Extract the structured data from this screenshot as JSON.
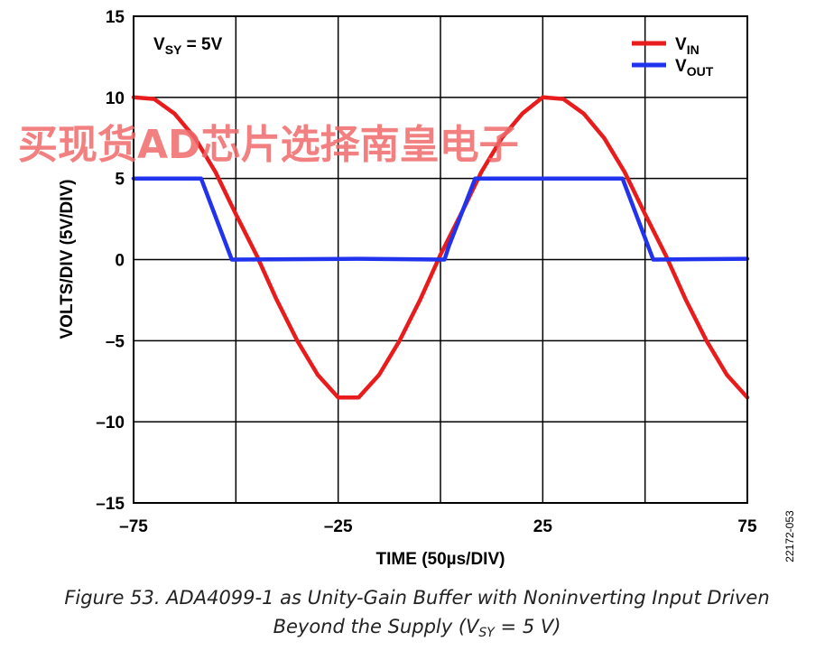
{
  "chart_data": {
    "type": "line",
    "xlabel": "TIME (50µs/DIV)",
    "ylabel": "VOLTS/DIV (5V/DIV)",
    "xlim": [
      -75,
      75
    ],
    "ylim": [
      -15,
      15
    ],
    "xticks": [
      "–75",
      "–25",
      "25",
      "75"
    ],
    "xtick_values": [
      -75,
      -25,
      25,
      75
    ],
    "yticks": [
      "15",
      "10",
      "5",
      "0",
      "–5",
      "–10",
      "–15"
    ],
    "ytick_values": [
      15,
      10,
      5,
      0,
      -5,
      -10,
      -15
    ],
    "grid": true,
    "legend_position": "top-right",
    "annotation": {
      "main": "V",
      "sub": "SY",
      "rest": " = 5V"
    },
    "series": [
      {
        "name": "VIN",
        "legend_main": "V",
        "legend_sub": "IN",
        "color": "#e81c1c",
        "x": [
          -75,
          -70,
          -65,
          -60,
          -55,
          -50,
          -45,
          -40,
          -35,
          -30,
          -25,
          -20,
          -15,
          -10,
          -5,
          0,
          5,
          10,
          15,
          20,
          25,
          30,
          35,
          40,
          45,
          50,
          55,
          60,
          65,
          70,
          75
        ],
        "y": [
          10.0,
          9.9,
          9.0,
          7.5,
          5.4,
          2.8,
          0.3,
          -2.5,
          -5.0,
          -7.1,
          -8.5,
          -8.5,
          -7.1,
          -5.0,
          -2.5,
          0.3,
          2.8,
          5.4,
          7.5,
          9.0,
          10.0,
          9.9,
          9.0,
          7.5,
          5.4,
          2.8,
          0.3,
          -2.5,
          -5.0,
          -7.1,
          -8.5
        ]
      },
      {
        "name": "VOUT",
        "legend_main": "V",
        "legend_sub": "OUT",
        "color": "#2233ee",
        "x": [
          -75,
          -58.5,
          -51,
          -20,
          1,
          2,
          8.5,
          44.5,
          52,
          75
        ],
        "y": [
          5.0,
          5.0,
          0.0,
          0.05,
          0.0,
          0.8,
          5.0,
          5.0,
          0.0,
          0.05
        ]
      }
    ]
  },
  "watermark": "买现货AD芯片选择南皇电子",
  "figure_id": "22172-053",
  "caption": {
    "line1": "Figure 53. ADA4099-1 as Unity-Gain Buffer with Noninverting Input Driven",
    "line2_pre": "Beyond the Supply (V",
    "line2_sub": "SY",
    "line2_post": " = 5 V)"
  }
}
